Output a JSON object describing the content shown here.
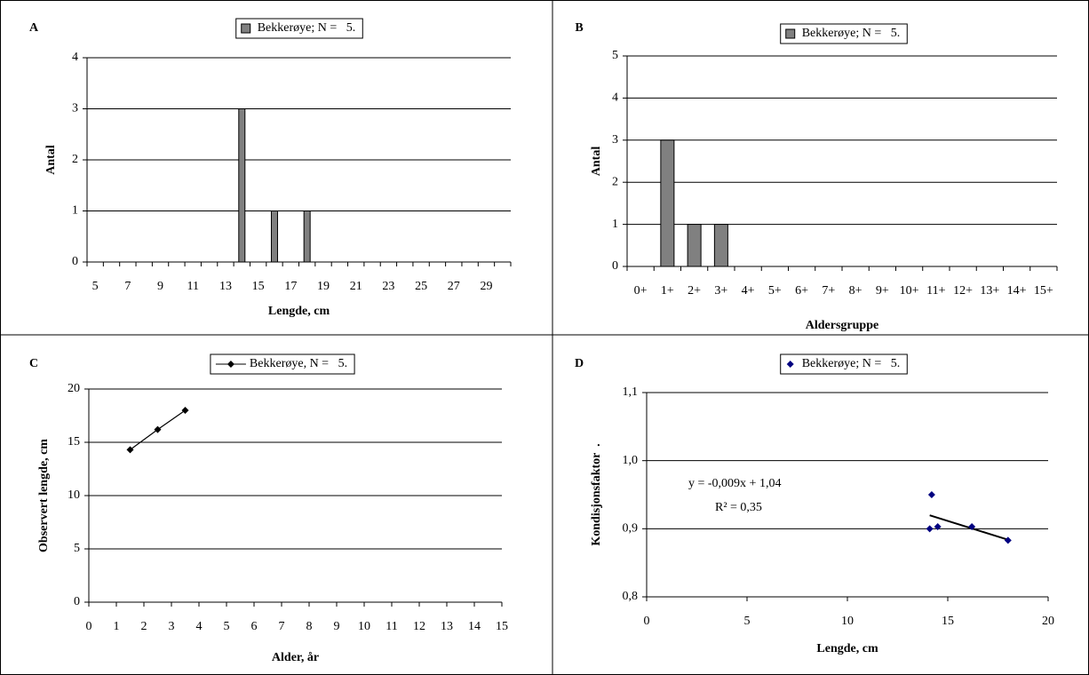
{
  "chart_data": [
    {
      "type": "bar",
      "title": "A",
      "xlabel": "Lengde, cm",
      "ylabel": "Antal",
      "categories": [
        "5",
        null,
        "7",
        null,
        "9",
        null,
        "11",
        null,
        "13",
        null,
        "15",
        null,
        "17",
        null,
        "19",
        null,
        "21",
        null,
        "23",
        null,
        "25",
        null,
        "27",
        null,
        "29",
        null
      ],
      "series": [
        {
          "name": "Bekkerøye; N =   5.",
          "color": "#808080",
          "values": [
            0,
            0,
            0,
            0,
            0,
            0,
            0,
            0,
            0,
            3,
            0,
            1,
            0,
            1,
            0,
            0,
            0,
            0,
            0,
            0,
            0,
            0,
            0,
            0,
            0,
            0
          ]
        }
      ],
      "ylim": [
        0,
        4
      ],
      "yticks": [
        0,
        1,
        2,
        3,
        4
      ],
      "grid": true
    },
    {
      "type": "bar",
      "title": "B",
      "xlabel": "Aldersgruppe",
      "ylabel": "Antal",
      "categories": [
        "0+",
        "1+",
        "2+",
        "3+",
        "4+",
        "5+",
        "6+",
        "7+",
        "8+",
        "9+",
        "10+",
        "11+",
        "12+",
        "13+",
        "14+",
        "15+"
      ],
      "series": [
        {
          "name": "Bekkerøye; N =   5.",
          "color": "#808080",
          "values": [
            0,
            3,
            1,
            1,
            0,
            0,
            0,
            0,
            0,
            0,
            0,
            0,
            0,
            0,
            0,
            0
          ]
        }
      ],
      "ylim": [
        0,
        5
      ],
      "yticks": [
        0,
        1,
        2,
        3,
        4,
        5
      ],
      "grid": true
    },
    {
      "type": "line",
      "title": "C",
      "xlabel": "Alder, år",
      "ylabel": "Observert lengde, cm",
      "x": [
        1.5,
        2.5,
        3.5
      ],
      "series": [
        {
          "name": "Bekkerøye, N =   5.",
          "color": "#000000",
          "values": [
            14.3,
            16.2,
            18.0
          ]
        }
      ],
      "xlim": [
        0,
        15
      ],
      "xticks": [
        0,
        1,
        2,
        3,
        4,
        5,
        6,
        7,
        8,
        9,
        10,
        11,
        12,
        13,
        14,
        15
      ],
      "ylim": [
        0,
        20
      ],
      "yticks": [
        0,
        5,
        10,
        15,
        20
      ],
      "grid": true
    },
    {
      "type": "scatter",
      "title": "D",
      "xlabel": "Lengde, cm",
      "ylabel": "Kondisjonsfaktor  .",
      "x": [
        14.1,
        14.2,
        14.5,
        16.2,
        18.0
      ],
      "series": [
        {
          "name": "Bekkerøye; N =   5.",
          "color": "#000080",
          "values": [
            0.9,
            0.95,
            0.903,
            0.903,
            0.883
          ]
        }
      ],
      "xlim": [
        0,
        20
      ],
      "xticks": [
        0,
        5,
        10,
        15,
        20
      ],
      "ylim": [
        0.8,
        1.1
      ],
      "yticks": [
        {
          "value": 0.8,
          "label": "0,8"
        },
        {
          "value": 0.9,
          "label": "0,9"
        },
        {
          "value": 1.0,
          "label": "1,0"
        },
        {
          "value": 1.1,
          "label": "1,1"
        }
      ],
      "grid": true,
      "trendline": true,
      "annotations": [
        "y = -0,009x + 1,04",
        "R² = 0,35"
      ]
    }
  ]
}
